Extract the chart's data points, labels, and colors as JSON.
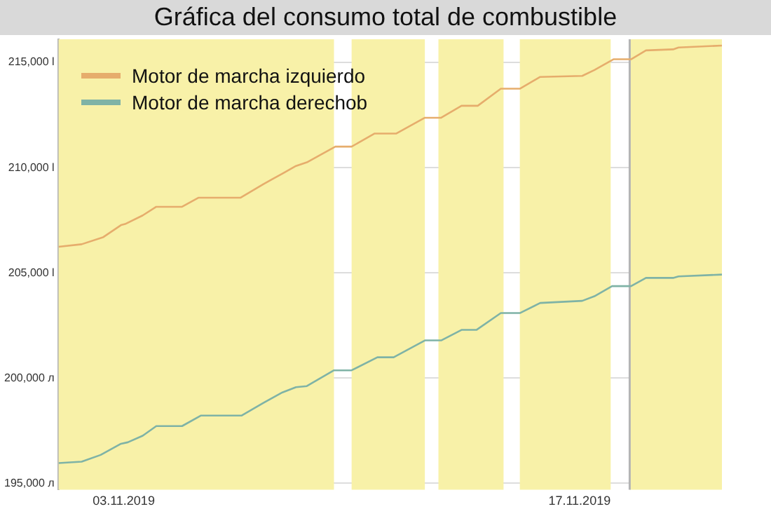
{
  "chart_data": {
    "type": "line",
    "title": "Gráfica del consumo total de combustible",
    "xlim": [
      "2019-11-01T00:00",
      "2019-11-21T09:00"
    ],
    "xticks": [
      {
        "value": "2019-11-03",
        "label": "03.11.2019"
      },
      {
        "value": "2019-11-17",
        "label": "17.11.2019"
      }
    ],
    "ylim": [
      194700,
      216100
    ],
    "yticks": [
      {
        "value": 195000,
        "label": "195,000 л"
      },
      {
        "value": 200000,
        "label": "200,000 л"
      },
      {
        "value": 205000,
        "label": "205,000 l"
      },
      {
        "value": 210000,
        "label": "210,000 l"
      },
      {
        "value": 215000,
        "label": "215,000 l"
      }
    ],
    "grid": "y",
    "legend": "top left",
    "marker": "none",
    "line_style": "solid",
    "bands": [
      {
        "axis": "x",
        "from": "2019-11-01T00:00",
        "to": "2019-11-09T11:00",
        "color": "#f8f1a8"
      },
      {
        "axis": "x",
        "from": "2019-11-10T00:00",
        "to": "2019-11-12T06:00",
        "color": "#f8f1a8"
      },
      {
        "axis": "x",
        "from": "2019-11-12T16:00",
        "to": "2019-11-14T16:00",
        "color": "#f8f1a8"
      },
      {
        "axis": "x",
        "from": "2019-11-15T04:00",
        "to": "2019-11-17T23:00",
        "color": "#f8f1a8"
      },
      {
        "axis": "x",
        "from": "2019-11-18T13:00",
        "to": "2019-11-21T09:00",
        "color": "#f8f1a8"
      }
    ],
    "ref_lines": [
      {
        "axis": "x",
        "value": "2019-11-18T13:00",
        "color": "#b4b4b4"
      }
    ],
    "series": [
      {
        "name": "Motor de marcha izquierdo",
        "color": "#e6ad6c",
        "x": [
          "2019-11-01T00:00",
          "2019-11-01T17:00",
          "2019-11-02T09:00",
          "2019-11-02T22:00",
          "2019-11-03T01:00",
          "2019-11-03T14:00",
          "2019-11-04T00:00",
          "2019-11-04T19:00",
          "2019-11-05T07:00",
          "2019-11-06T14:00",
          "2019-11-07T07:00",
          "2019-11-07T21:00",
          "2019-11-08T07:00",
          "2019-11-08T15:00",
          "2019-11-09T12:00",
          "2019-11-10T00:00",
          "2019-11-10T17:00",
          "2019-11-11T09:00",
          "2019-11-12T06:00",
          "2019-11-12T18:00",
          "2019-11-13T09:00",
          "2019-11-13T21:00",
          "2019-11-14T14:00",
          "2019-11-15T04:00",
          "2019-11-15T19:00",
          "2019-11-17T02:00",
          "2019-11-17T11:00",
          "2019-11-18T01:00",
          "2019-11-18T14:00",
          "2019-11-19T01:00",
          "2019-11-19T21:00",
          "2019-11-20T01:00",
          "2019-11-21T09:00"
        ],
        "values": [
          206240,
          206360,
          206700,
          207270,
          207320,
          207730,
          208140,
          208140,
          208570,
          208570,
          209220,
          209720,
          210080,
          210250,
          211000,
          211000,
          211620,
          211620,
          212370,
          212370,
          212940,
          212940,
          213750,
          213750,
          214310,
          214360,
          214640,
          215150,
          215150,
          215570,
          215620,
          215710,
          215800
        ]
      },
      {
        "name": "Motor de marcha derechob",
        "color": "#7fb3a6",
        "x": [
          "2019-11-01T00:00",
          "2019-11-01T17:00",
          "2019-11-02T07:00",
          "2019-11-02T22:00",
          "2019-11-03T03:00",
          "2019-11-03T14:00",
          "2019-11-04T00:00",
          "2019-11-04T19:00",
          "2019-11-05T09:00",
          "2019-11-06T15:00",
          "2019-11-07T07:00",
          "2019-11-07T21:00",
          "2019-11-08T07:00",
          "2019-11-08T15:00",
          "2019-11-09T11:00",
          "2019-11-10T00:00",
          "2019-11-10T19:00",
          "2019-11-11T07:00",
          "2019-11-12T06:00",
          "2019-11-12T18:00",
          "2019-11-13T09:00",
          "2019-11-13T20:00",
          "2019-11-14T14:00",
          "2019-11-15T04:00",
          "2019-11-15T19:00",
          "2019-11-17T02:00",
          "2019-11-17T11:00",
          "2019-11-18T00:00",
          "2019-11-18T14:00",
          "2019-11-19T01:00",
          "2019-11-19T21:00",
          "2019-11-20T01:00",
          "2019-11-21T09:00"
        ],
        "values": [
          195960,
          196030,
          196350,
          196880,
          196950,
          197260,
          197720,
          197720,
          198220,
          198220,
          198820,
          199320,
          199570,
          199620,
          200370,
          200370,
          200990,
          200990,
          201790,
          201790,
          202290,
          202290,
          203090,
          203090,
          203570,
          203670,
          203890,
          204370,
          204370,
          204760,
          204760,
          204830,
          204920
        ]
      }
    ]
  }
}
